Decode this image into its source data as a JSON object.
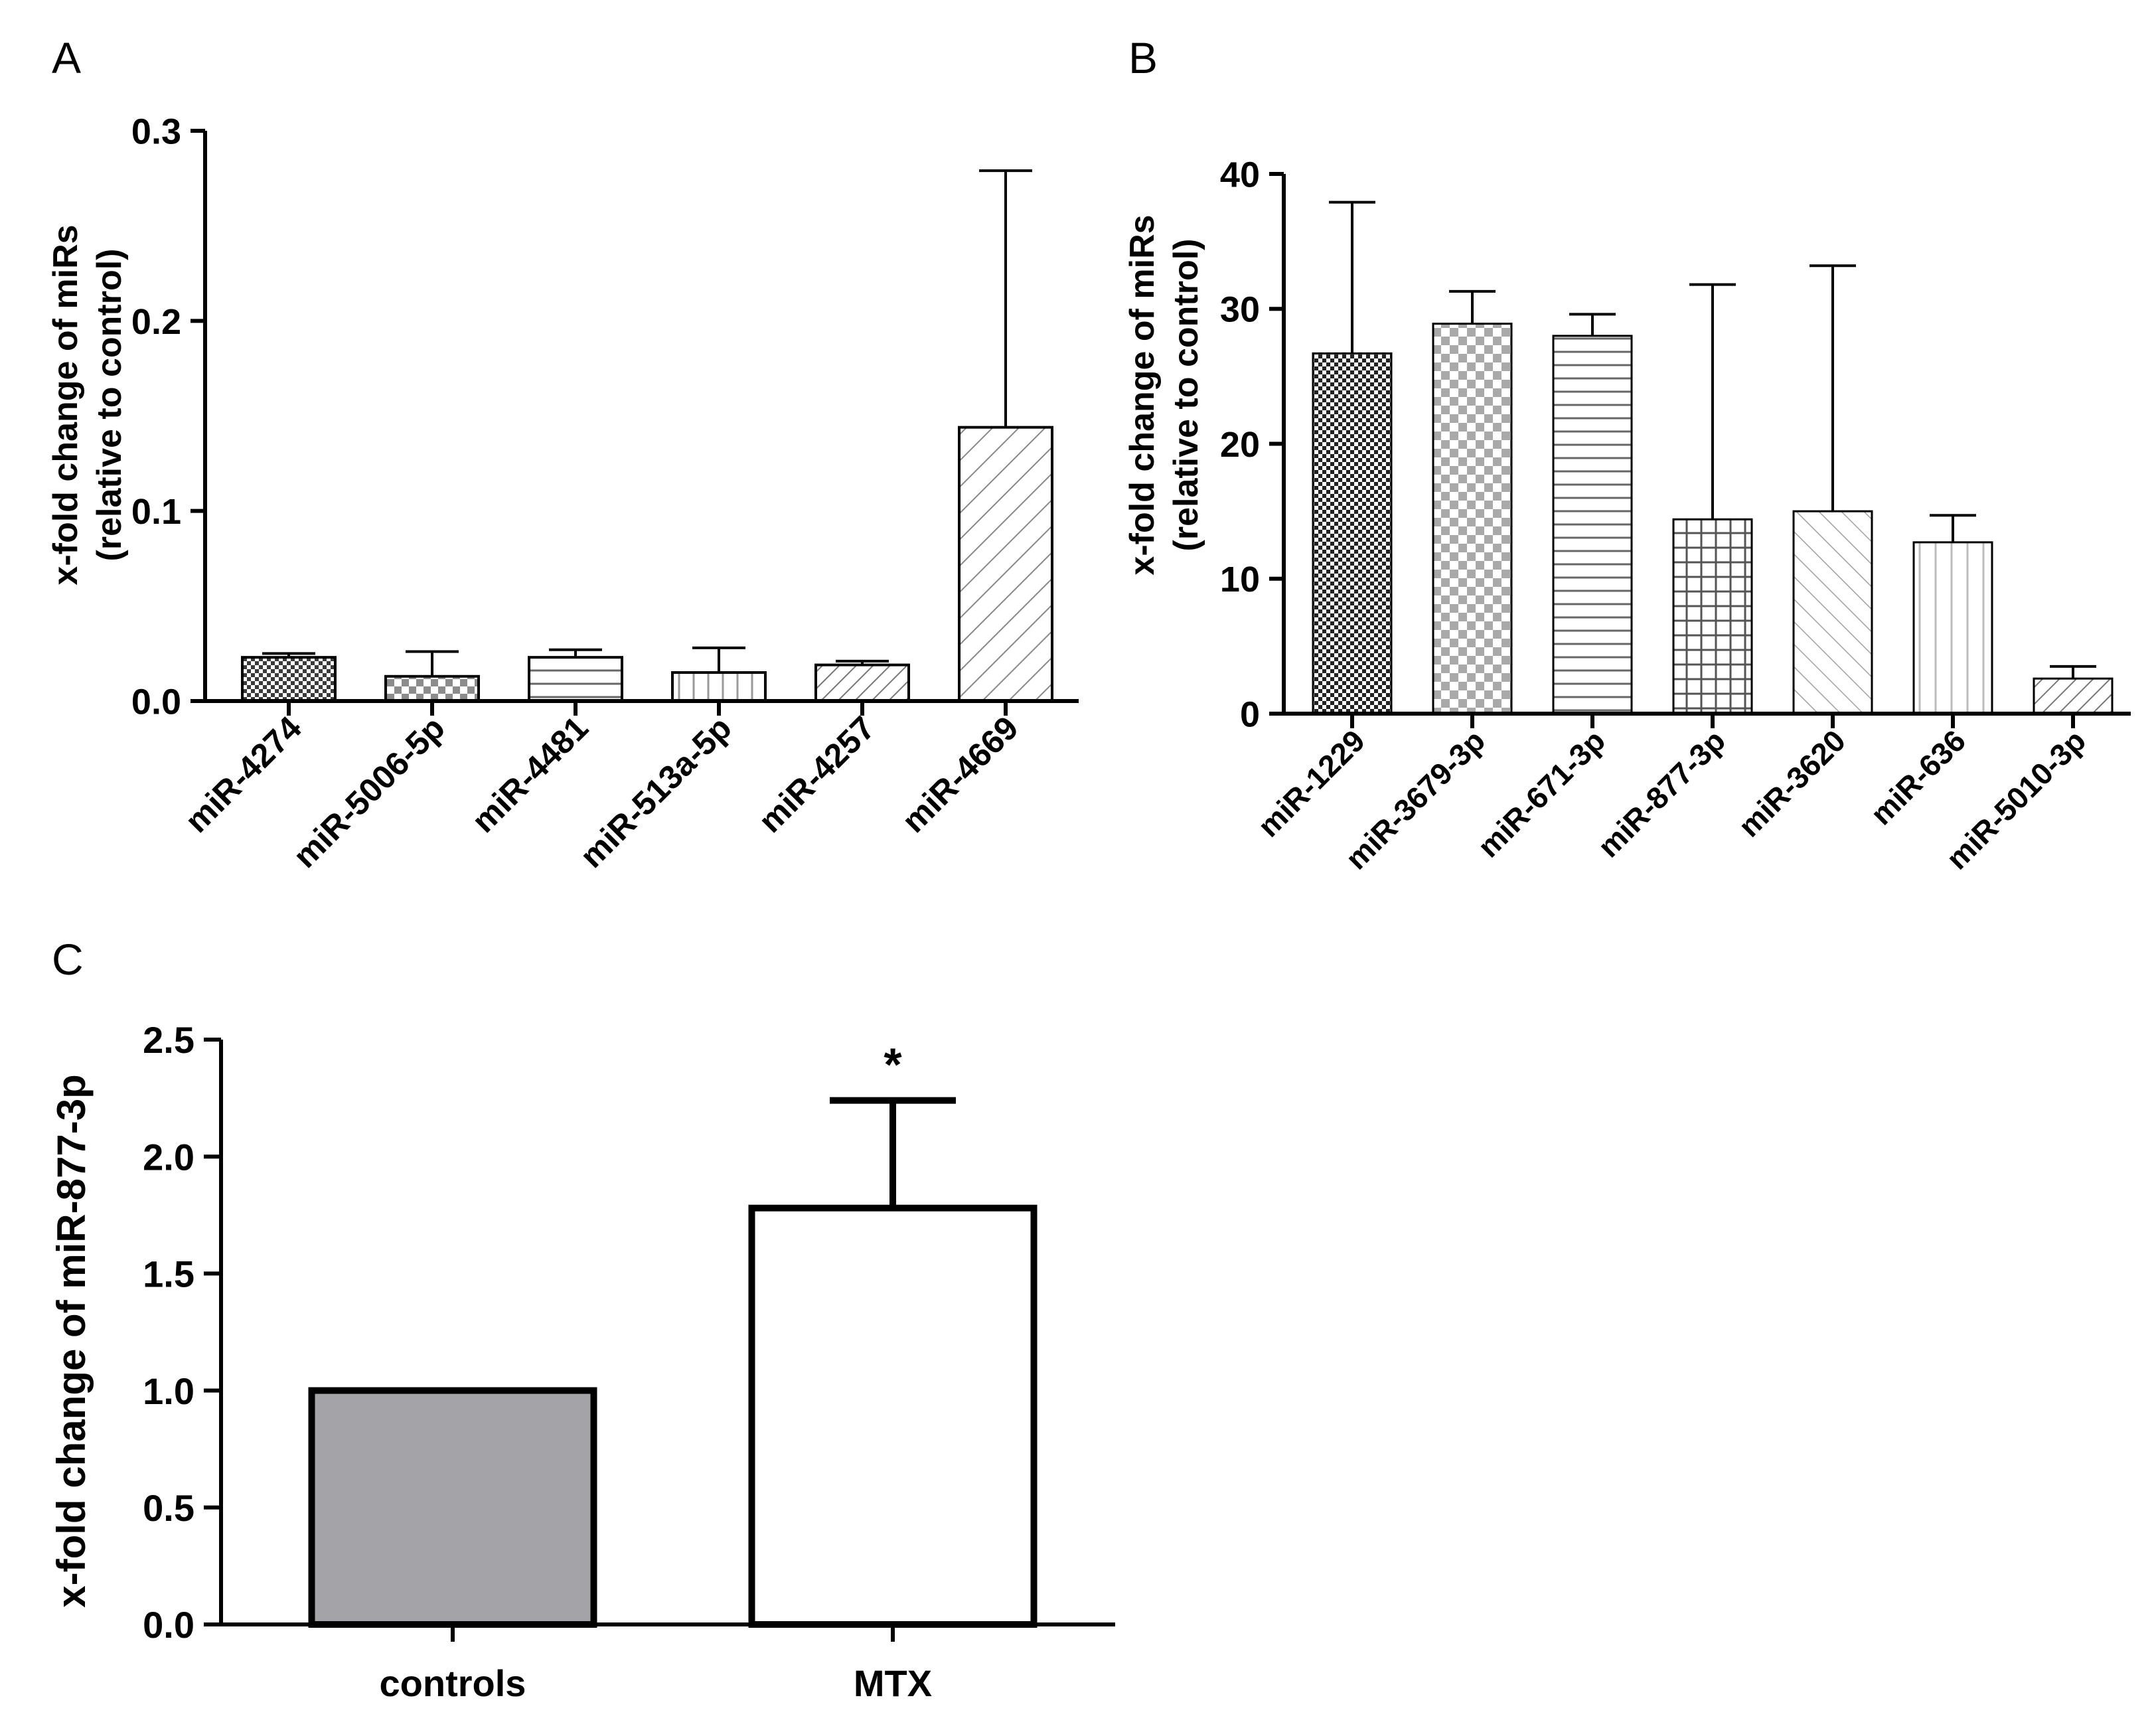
{
  "chart_data": [
    {
      "panel": "A",
      "type": "bar",
      "categories": [
        "miR-4274",
        "miR-5006-5p",
        "miR-4481",
        "miR-513a-5p",
        "miR-4257",
        "miR-4669"
      ],
      "values": [
        0.023,
        0.013,
        0.023,
        0.015,
        0.019,
        0.144
      ],
      "errors": [
        0.002,
        0.013,
        0.004,
        0.013,
        0.002,
        0.135
      ],
      "patterns": [
        "pat-dense",
        "pat-check",
        "pat-hlines",
        "pat-vlines",
        "pat-diag",
        "pat-diag-wide"
      ],
      "title": "",
      "xlabel": "",
      "ylabel_lines": [
        "x-fold change of miRs",
        "(relative to control)"
      ],
      "ylim": [
        0,
        0.3
      ],
      "yticks": [
        "0.0",
        "0.1",
        "0.2",
        "0.3"
      ],
      "grid": false
    },
    {
      "panel": "B",
      "type": "bar",
      "categories": [
        "miR-1229",
        "miR-3679-3p",
        "miR-671-3p",
        "miR-877-3p",
        "miR-3620",
        "miR-636",
        "miR-5010-3p"
      ],
      "values": [
        26.7,
        28.9,
        28.0,
        14.4,
        15.0,
        12.7,
        2.6
      ],
      "errors": [
        11.2,
        2.4,
        1.6,
        17.4,
        18.2,
        2.0,
        0.9
      ],
      "patterns": [
        "pat-dense-dark",
        "pat-check-gray",
        "pat-hlines",
        "pat-grid",
        "pat-diag-back",
        "pat-vlines-light",
        "pat-diag"
      ],
      "title": "",
      "xlabel": "",
      "ylabel_lines": [
        "x-fold change of miRs",
        "(relative to control)"
      ],
      "ylim": [
        0,
        40
      ],
      "yticks": [
        "0",
        "10",
        "20",
        "30",
        "40"
      ],
      "grid": false
    },
    {
      "panel": "C",
      "type": "bar",
      "categories": [
        "controls",
        "MTX"
      ],
      "values": [
        1.0,
        1.78
      ],
      "errors": [
        0,
        0.46
      ],
      "fills": [
        "#a3a3a8",
        "#ffffff"
      ],
      "annotations": [
        "",
        "*"
      ],
      "title": "",
      "xlabel": "",
      "ylabel_lines": [
        "x-fold change of miR-877-3p"
      ],
      "ylim": [
        0,
        2.5
      ],
      "yticks": [
        "0.0",
        "0.5",
        "1.0",
        "1.5",
        "2.0",
        "2.5"
      ],
      "grid": false
    }
  ]
}
